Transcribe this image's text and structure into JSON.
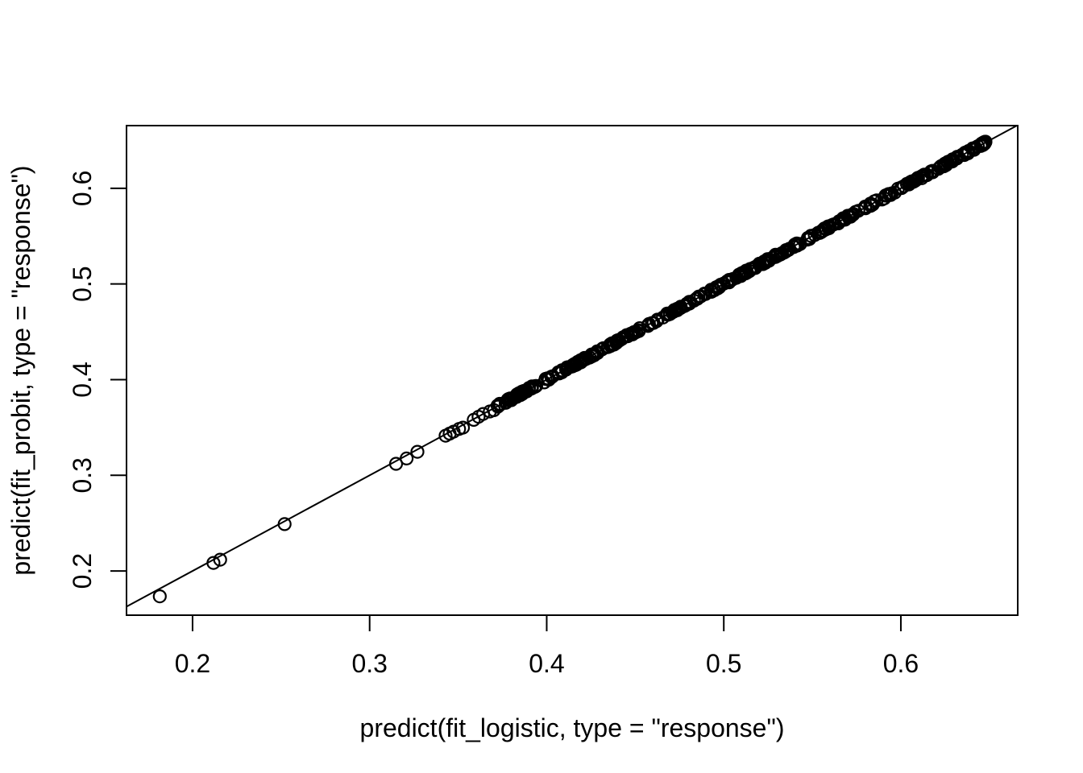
{
  "chart_data": {
    "type": "scatter",
    "title": "",
    "xlabel": "predict(fit_logistic, type = \"response\")",
    "ylabel": "predict(fit_probit, type = \"response\")",
    "xlim": [
      0.1627,
      0.666
    ],
    "ylim": [
      0.1538,
      0.6655
    ],
    "x_ticks": [
      0.2,
      0.3,
      0.4,
      0.5,
      0.6
    ],
    "y_ticks": [
      0.2,
      0.3,
      0.4,
      0.5,
      0.6
    ],
    "tick_label_format_decimals": 1,
    "grid": false,
    "legend": null,
    "background_color": "#ffffff",
    "foreground_color": "#000000",
    "marker": {
      "shape": "open-circle",
      "stroke_color": "#000000",
      "fill": "none"
    },
    "reference_line": {
      "slope": 1,
      "intercept": 0,
      "color": "#000000",
      "note": "identity line y = x drawn across full plot region"
    },
    "points": [
      [
        0.1815,
        0.1735
      ],
      [
        0.2118,
        0.2084
      ],
      [
        0.2156,
        0.2118
      ],
      [
        0.252,
        0.249
      ],
      [
        0.3149,
        0.312
      ],
      [
        0.3209,
        0.3176
      ],
      [
        0.327,
        0.3246
      ],
      [
        0.3429,
        0.3414
      ],
      [
        0.3452,
        0.3436
      ],
      [
        0.3474,
        0.3456
      ],
      [
        0.3505,
        0.3485
      ],
      [
        0.3527,
        0.3498
      ],
      [
        0.3588,
        0.358
      ],
      [
        0.3615,
        0.3612
      ],
      [
        0.3641,
        0.3641
      ],
      [
        0.3679,
        0.3667
      ],
      [
        0.3702,
        0.3681
      ]
    ],
    "dense_bands": [
      {
        "x_start": 0.372,
        "x_end": 0.4,
        "count": 48,
        "y_jitter": 0.003,
        "note": "heavily overlapping open circles on the identity line, small white gaps visible"
      },
      {
        "x_start": 0.4,
        "x_end": 0.6475,
        "count": 360,
        "y_jitter": 0.0028,
        "note": "solid black band of overlapping open circles along the identity line"
      },
      {
        "x_start": 0.6448,
        "x_end": 0.6478,
        "count": 30,
        "y_jitter": 0.0024,
        "note": "pile-up of points at the maximum predicted value forming a rounded cap"
      }
    ]
  }
}
